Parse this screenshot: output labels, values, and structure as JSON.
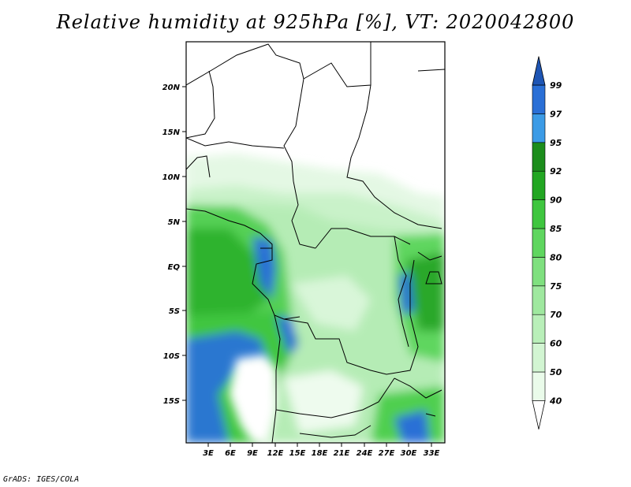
{
  "title": "Relative humidity at 925hPa [%], VT: 2020042800",
  "credit": "GrADS: IGES/COLA",
  "map": {
    "lat_labels": [
      "20N",
      "15N",
      "10N",
      "5N",
      "EQ",
      "5S",
      "10S",
      "15S"
    ],
    "lon_labels": [
      "3E",
      "6E",
      "9E",
      "12E",
      "15E",
      "18E",
      "21E",
      "24E",
      "27E",
      "30E",
      "33E"
    ]
  },
  "colorbar": {
    "levels": [
      "40",
      "50",
      "60",
      "70",
      "75",
      "80",
      "85",
      "90",
      "92",
      "95",
      "97",
      "99"
    ],
    "colors": [
      "#ffffff",
      "#eafbea",
      "#d2f5d2",
      "#b9efb9",
      "#9fe89f",
      "#7fe07f",
      "#5fd65f",
      "#3fc63f",
      "#22a622",
      "#1c8d1c",
      "#3c9be6",
      "#2a6fd6",
      "#1e55b4"
    ]
  }
}
